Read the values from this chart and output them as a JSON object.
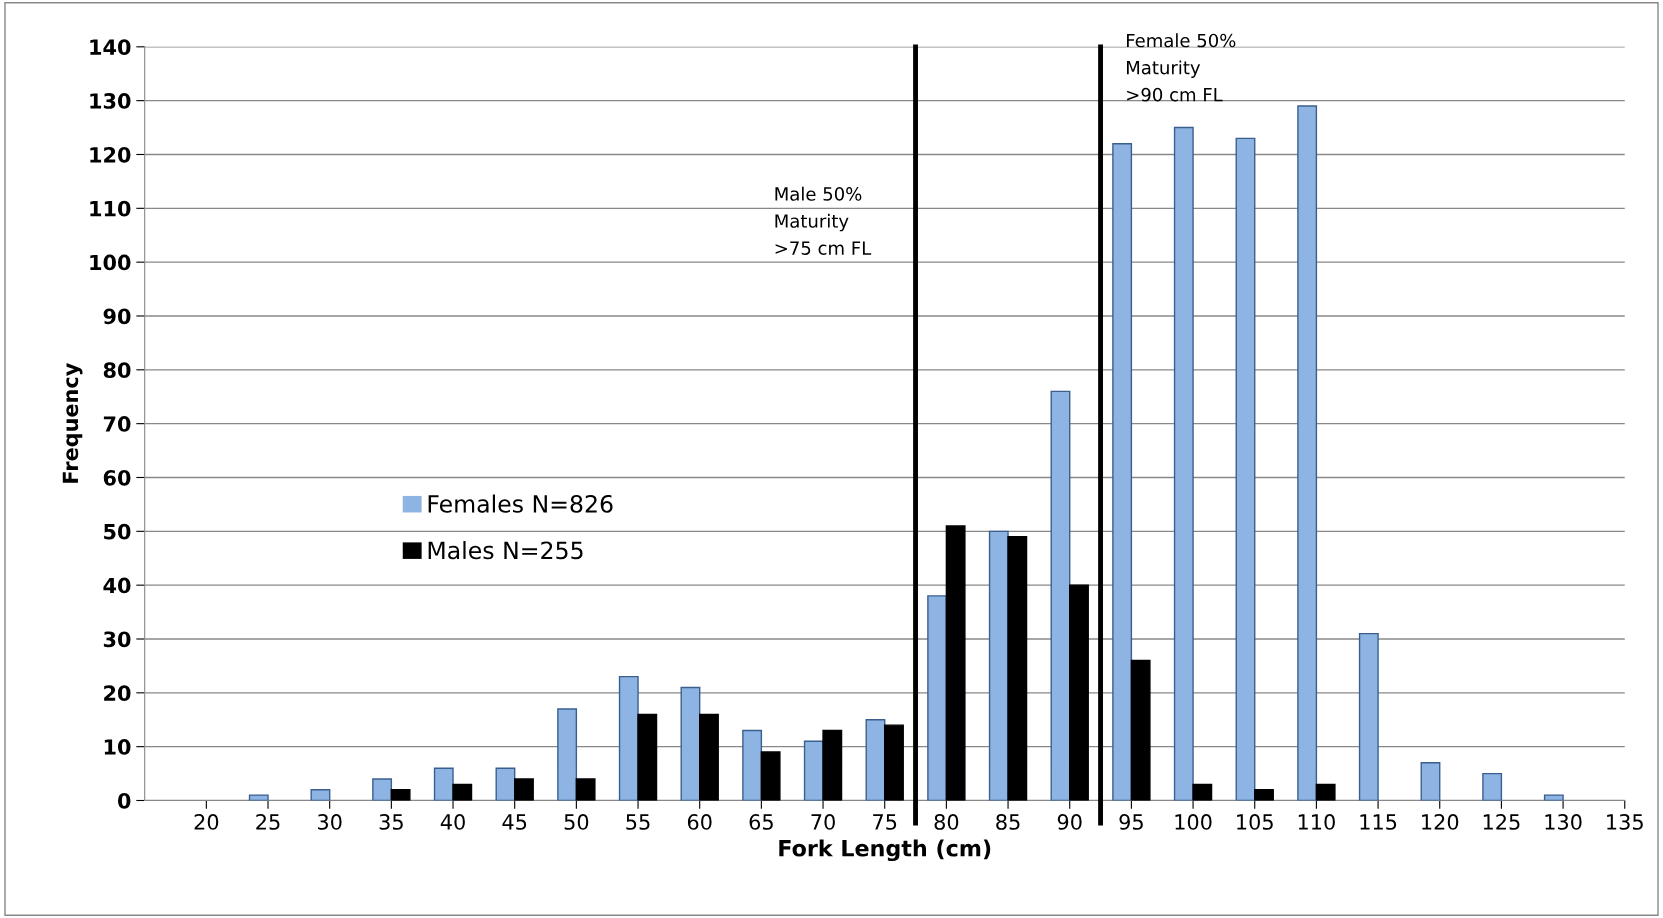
{
  "chart_data": {
    "type": "bar",
    "xlabel": "Fork Length (cm)",
    "ylabel": "Frequency",
    "x": [
      20,
      25,
      30,
      35,
      40,
      45,
      50,
      55,
      60,
      65,
      70,
      75,
      80,
      85,
      90,
      95,
      100,
      105,
      110,
      115,
      120,
      125,
      130
    ],
    "series": [
      {
        "name": "Females N=826",
        "color": "#8eb4e3",
        "values": [
          0,
          1,
          2,
          4,
          6,
          6,
          17,
          23,
          21,
          13,
          11,
          15,
          38,
          50,
          76,
          122,
          125,
          123,
          129,
          31,
          7,
          5,
          1
        ]
      },
      {
        "name": "Males N=255",
        "color": "#000000",
        "values": [
          0,
          0,
          0,
          2,
          3,
          4,
          4,
          16,
          16,
          9,
          13,
          14,
          51,
          49,
          40,
          26,
          3,
          2,
          3,
          0,
          0,
          0,
          0
        ]
      }
    ],
    "xlim": [
      15,
      135
    ],
    "xticks": [
      20,
      25,
      30,
      35,
      40,
      45,
      50,
      55,
      60,
      65,
      70,
      75,
      80,
      85,
      90,
      95,
      100,
      105,
      110,
      115,
      120,
      125,
      130,
      135
    ],
    "ylim": [
      0,
      140
    ],
    "yticks": [
      0,
      10,
      20,
      30,
      40,
      50,
      60,
      70,
      80,
      90,
      100,
      110,
      120,
      130,
      140
    ],
    "ref_lines": [
      {
        "axis": "x",
        "value": 77.5,
        "label": "Male 50%\nMaturity\n>75 cm FL",
        "color": "#000000"
      },
      {
        "axis": "x",
        "value": 92.5,
        "label": "Female 50%\nMaturity\n>90 cm FL",
        "color": "#000000"
      }
    ],
    "grid": "y",
    "legend": "center left"
  }
}
